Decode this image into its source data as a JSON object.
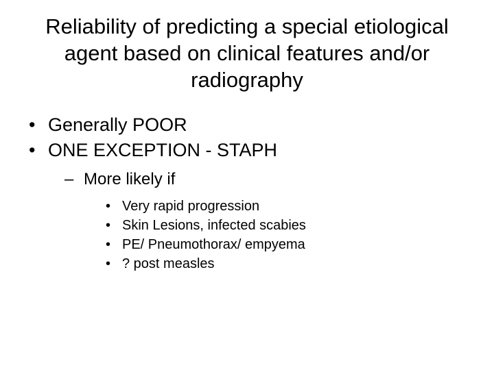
{
  "title": "Reliability of predicting a special etiological agent based on clinical features and/or radiography",
  "bullets": {
    "l1": [
      "Generally POOR",
      "ONE EXCEPTION  - STAPH"
    ],
    "l2": [
      "More likely if"
    ],
    "l3": [
      "Very rapid progression",
      "Skin Lesions, infected scabies",
      "PE/ Pneumothorax/ empyema",
      "? post measles"
    ]
  },
  "style": {
    "background_color": "#ffffff",
    "text_color": "#000000",
    "font_family": "Arial",
    "title_fontsize_pt": 23,
    "l1_fontsize_pt": 20,
    "l2_fontsize_pt": 18,
    "l3_fontsize_pt": 15
  }
}
